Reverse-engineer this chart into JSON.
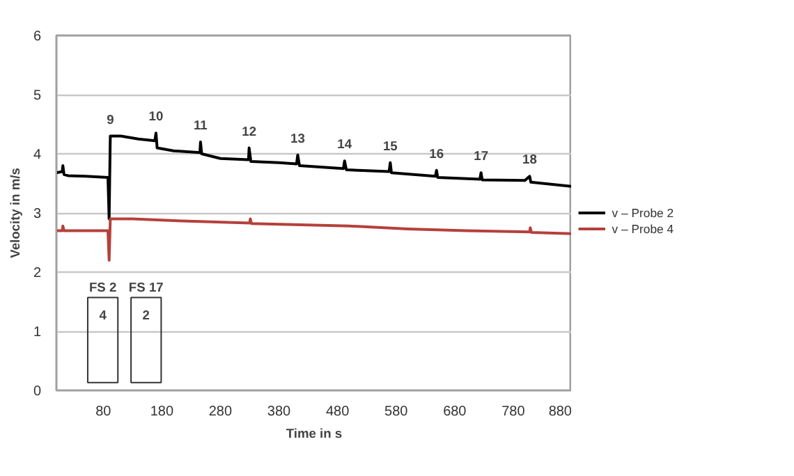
{
  "chart_data": {
    "type": "line",
    "xlabel": "Time in s",
    "ylabel": "Velocity in m/s",
    "xlim": [
      0,
      880
    ],
    "xticks": [
      80,
      180,
      280,
      380,
      480,
      580,
      680,
      780,
      880
    ],
    "ylim": [
      0,
      6
    ],
    "yticks": [
      0,
      1,
      2,
      3,
      4,
      5,
      6
    ],
    "grid": "y",
    "legend": "right",
    "line_style": "solid",
    "marker": "none",
    "series": [
      {
        "name": "v – Probe 2",
        "color": "#000000",
        "x": [
          0,
          10,
          11,
          13,
          20,
          50,
          88,
          90,
          92,
          110,
          140,
          168,
          170,
          172,
          200,
          245,
          246,
          248,
          280,
          328,
          329,
          332,
          380,
          410,
          412,
          415,
          490,
          492,
          495,
          568,
          570,
          572,
          647,
          649,
          651,
          723,
          725,
          727,
          800,
          808,
          810,
          880
        ],
        "values": [
          3.68,
          3.7,
          3.8,
          3.65,
          3.63,
          3.62,
          3.6,
          2.9,
          4.3,
          4.3,
          4.25,
          4.22,
          4.35,
          4.1,
          4.05,
          4.02,
          4.2,
          4.0,
          3.92,
          3.9,
          4.1,
          3.87,
          3.85,
          3.83,
          3.98,
          3.8,
          3.75,
          3.88,
          3.73,
          3.7,
          3.85,
          3.68,
          3.62,
          3.72,
          3.6,
          3.57,
          3.68,
          3.56,
          3.55,
          3.62,
          3.52,
          3.45
        ]
      },
      {
        "name": "v – Probe 4",
        "color": "#b5403c",
        "x": [
          0,
          10,
          11,
          13,
          88,
          90,
          92,
          130,
          200,
          330,
          331,
          333,
          500,
          600,
          700,
          808,
          809,
          811,
          880
        ],
        "values": [
          2.7,
          2.7,
          2.78,
          2.7,
          2.7,
          2.2,
          2.9,
          2.9,
          2.87,
          2.83,
          2.9,
          2.82,
          2.78,
          2.73,
          2.7,
          2.68,
          2.75,
          2.67,
          2.65
        ]
      }
    ],
    "annotations": [
      {
        "text": "9",
        "x": 92,
        "y": 4.3
      },
      {
        "text": "10",
        "x": 170,
        "y": 4.35
      },
      {
        "text": "11",
        "x": 246,
        "y": 4.2
      },
      {
        "text": "12",
        "x": 329,
        "y": 4.1
      },
      {
        "text": "13",
        "x": 412,
        "y": 3.98
      },
      {
        "text": "14",
        "x": 492,
        "y": 3.88
      },
      {
        "text": "15",
        "x": 570,
        "y": 3.85
      },
      {
        "text": "16",
        "x": 649,
        "y": 3.72
      },
      {
        "text": "17",
        "x": 725,
        "y": 3.68
      },
      {
        "text": "18",
        "x": 808,
        "y": 3.62
      },
      "FS 2",
      "4",
      "FS 17",
      "2"
    ]
  }
}
